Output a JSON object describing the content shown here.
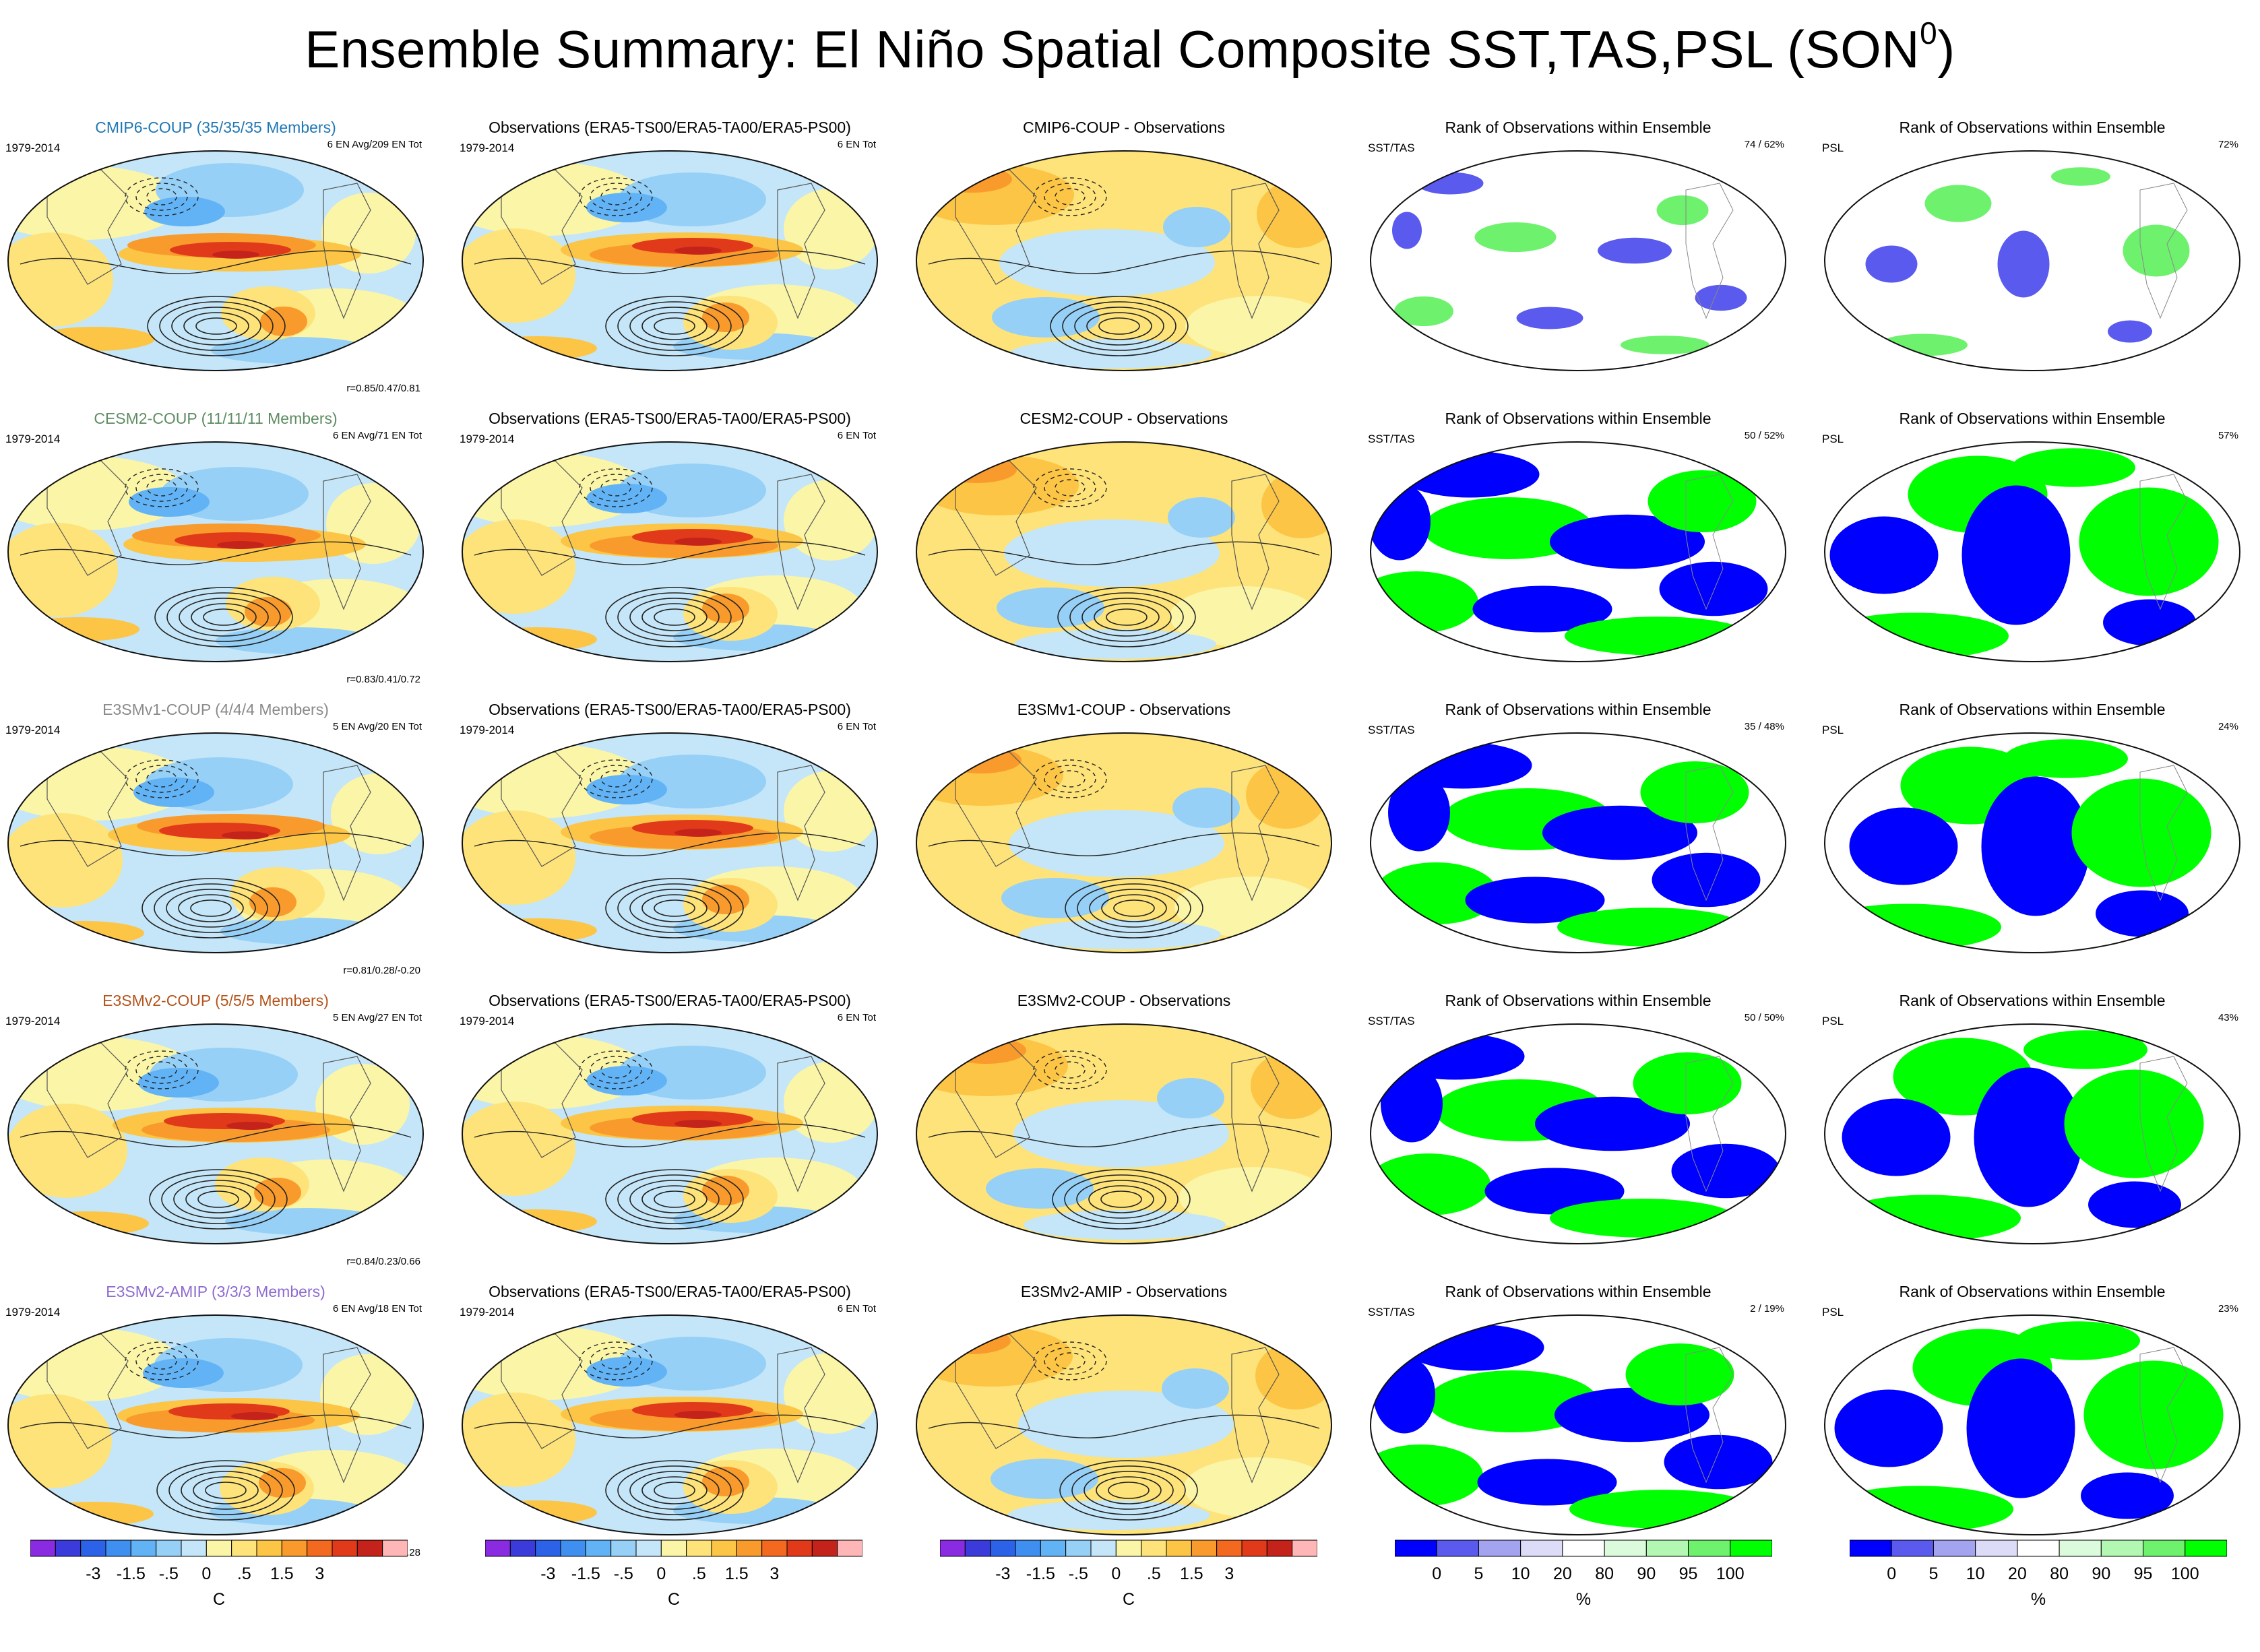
{
  "title": "Ensemble Summary: El Niño Spatial Composite SST,TAS,PSL (SON",
  "title_sup": "0",
  "title_close": ")",
  "period": "1979-2014",
  "obs_title": "Observations (ERA5-TS00/ERA5-TA00/ERA5-PS00)",
  "obs_count": "6 EN Tot",
  "rank_title": "Rank of Observations within Ensemble",
  "sst_label": "SST/TAS",
  "psl_label": "PSL",
  "rows": [
    {
      "model": "CMIP6-COUP (35/35/35 Members)",
      "model_color": "#1f77b4",
      "en": "6 EN Avg/209 EN Tot",
      "corr": "r=0.85/0.47/0.81",
      "diff": "CMIP6-COUP - Observations",
      "rank_sst": "74 /  62%",
      "rank_psl": "72%"
    },
    {
      "model": "CESM2-COUP (11/11/11 Members)",
      "model_color": "#5e8c61",
      "en": "6 EN Avg/71 EN Tot",
      "corr": "r=0.83/0.41/0.72",
      "diff": "CESM2-COUP - Observations",
      "rank_sst": "50 /  52%",
      "rank_psl": "57%"
    },
    {
      "model": "E3SMv1-COUP (4/4/4 Members)",
      "model_color": "#8a8a8a",
      "en": "5 EN Avg/20 EN Tot",
      "corr": "r=0.81/0.28/-0.20",
      "diff": "E3SMv1-COUP - Observations",
      "rank_sst": "35 /  48%",
      "rank_psl": "24%"
    },
    {
      "model": "E3SMv2-COUP (5/5/5 Members)",
      "model_color": "#b5541c",
      "en": "5 EN Avg/27 EN Tot",
      "corr": "r=0.84/0.23/0.66",
      "diff": "E3SMv2-COUP - Observations",
      "rank_sst": "50 /  50%",
      "rank_psl": "43%"
    },
    {
      "model": "E3SMv2-AMIP (3/3/3 Members)",
      "model_color": "#8e6bd0",
      "en": "6 EN Avg/18 EN Tot",
      "corr": "r=0.92/0.30/0.28",
      "diff": "E3SMv2-AMIP - Observations",
      "rank_sst": "2 /  19%",
      "rank_psl": "23%"
    }
  ],
  "chart_data": {
    "type": "heatmap",
    "title": "Ensemble Summary: El Niño Spatial Composite SST,TAS,PSL (SON0)",
    "projection": "Robinson (global maps)",
    "columns": [
      "Model composite",
      "Observations",
      "Model - Observations",
      "Rank SST/TAS",
      "Rank PSL"
    ],
    "composite_colorbar": {
      "unit": "C",
      "tick_labels": [
        "-3",
        "-1.5",
        "-.5",
        "0",
        ".5",
        "1.5",
        "3"
      ],
      "colors": [
        "#8a2be2",
        "#3b3bdc",
        "#2c62e8",
        "#3f8ff0",
        "#62b3f5",
        "#96d0f7",
        "#c4e6f8",
        "#fbf5a8",
        "#fde37a",
        "#fcc545",
        "#f99b2c",
        "#f3691f",
        "#e03a1a",
        "#c4231b",
        "#ffb6b6"
      ]
    },
    "rank_colorbar": {
      "unit": "%",
      "tick_labels": [
        "0",
        "5",
        "10",
        "20",
        "80",
        "90",
        "95",
        "100"
      ],
      "colors": [
        "#0000ff",
        "#5a5aee",
        "#a3a3f0",
        "#dcdcf8",
        "#ffffff",
        "#dcfbdc",
        "#b2f7b2",
        "#6ef26e",
        "#00ff00"
      ]
    },
    "rank_percent": {
      "sst_tas": [
        62,
        52,
        48,
        50,
        19
      ],
      "sst_tas_count": [
        74,
        50,
        35,
        50,
        2
      ],
      "psl": [
        72,
        57,
        24,
        43,
        23
      ]
    },
    "pattern_correlation": [
      [
        0.85,
        0.47,
        0.81
      ],
      [
        0.83,
        0.41,
        0.72
      ],
      [
        0.81,
        0.28,
        -0.2
      ],
      [
        0.84,
        0.23,
        0.66
      ],
      [
        0.92,
        0.3,
        0.28
      ]
    ]
  }
}
